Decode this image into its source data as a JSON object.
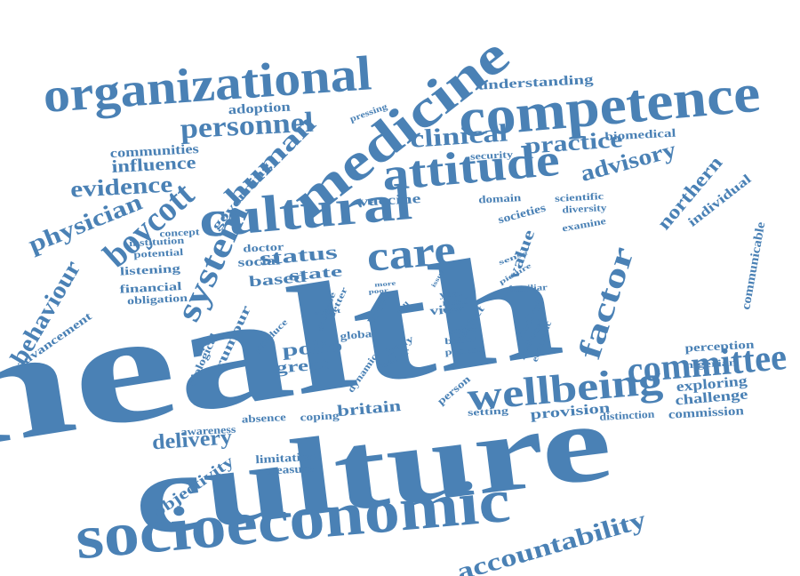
{
  "color": "#4a81b5",
  "words": [
    "health",
    "culture",
    "socioeconomic",
    "medicine",
    "competence",
    "organizational",
    "cultural",
    "care",
    "attitude",
    "system",
    "wellbeing",
    "committee",
    "factor",
    "boycott",
    "personnel",
    "human",
    "clinical",
    "practice",
    "advisory",
    "physician",
    "evidence",
    "behaviour",
    "accountability",
    "delivery",
    "status",
    "northern",
    "influence",
    "polio",
    "value",
    "communities",
    "britain",
    "great",
    "state",
    "based",
    "exploring",
    "challenge",
    "provision",
    "objectivity",
    "individual",
    "communicable",
    "advancement",
    "understanding",
    "biomedical",
    "adoption",
    "rumour",
    "governing",
    "vaccine",
    "social",
    "doctor",
    "listening",
    "financial",
    "obligation",
    "potential",
    "institution",
    "concept",
    "security",
    "domain",
    "scientific",
    "diversity",
    "societies",
    "examine",
    "commission",
    "perception",
    "nigerian",
    "distinction",
    "setting",
    "coping",
    "absence",
    "awareness",
    "limitation",
    "measure",
    "view",
    "year",
    "need",
    "affect",
    "local",
    "global",
    "body",
    "paper",
    "dynamic",
    "produce",
    "disease",
    "better",
    "poor",
    "effect",
    "tell",
    "more",
    "many",
    "issue",
    "sense",
    "picture",
    "familiar",
    "medical",
    "political",
    "economic",
    "other",
    "belief",
    "patient",
    "person",
    "biological",
    "pressing"
  ]
}
